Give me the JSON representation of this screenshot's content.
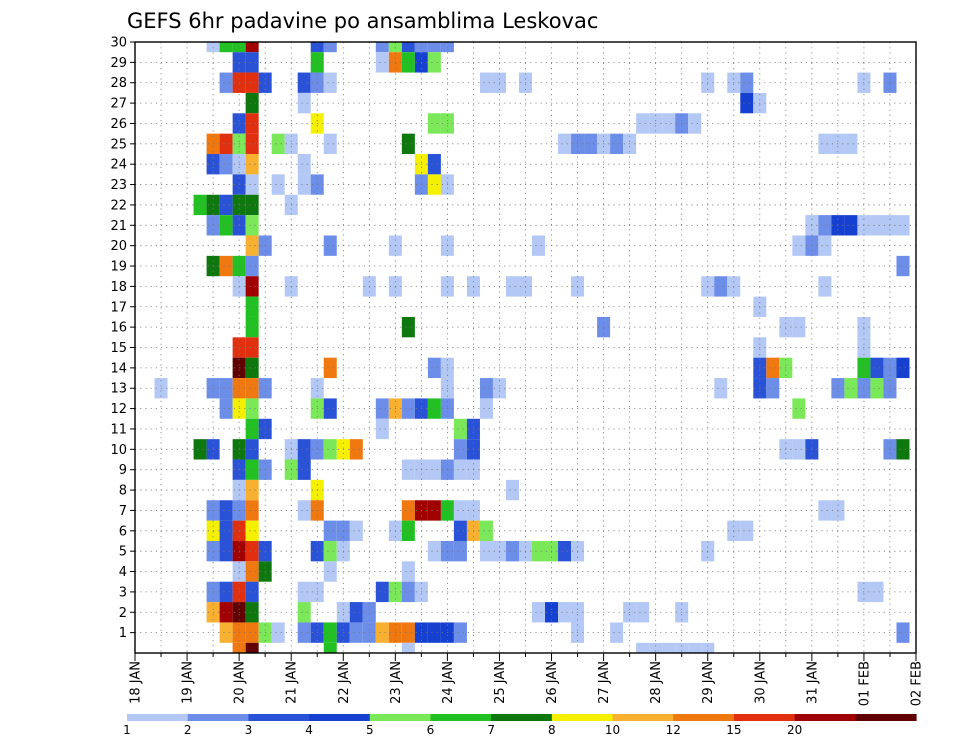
{
  "chart_data": {
    "type": "heatmap",
    "title": "GEFS 6hr padavine po ansamblima Leskovac",
    "xlabel": "",
    "ylabel": "",
    "x_tick_labels": [
      "18 JAN",
      "19 JAN",
      "20 JAN",
      "21 JAN",
      "22 JAN",
      "23 JAN",
      "24 JAN",
      "25 JAN",
      "26 JAN",
      "27 JAN",
      "28 JAN",
      "29 JAN",
      "30 JAN",
      "31 JAN",
      "01 FEB",
      "02 FEB"
    ],
    "y_tick_labels": [
      "1",
      "2",
      "3",
      "4",
      "5",
      "6",
      "7",
      "8",
      "9",
      "10",
      "11",
      "12",
      "13",
      "14",
      "15",
      "16",
      "17",
      "18",
      "19",
      "20",
      "21",
      "22",
      "23",
      "24",
      "25",
      "26",
      "27",
      "28",
      "29",
      "30"
    ],
    "x_range_6h_steps": [
      0,
      60
    ],
    "y_range_member": [
      0,
      30
    ],
    "grid": true,
    "legend": {
      "position": "bottom",
      "thresholds": [
        "1",
        "2",
        "3",
        "4",
        "5",
        "6",
        "7",
        "8",
        "10",
        "12",
        "15",
        "20"
      ],
      "colors": [
        "#b4c8f5",
        "#6c8ee8",
        "#2a52d6",
        "#1640d0",
        "#7be85a",
        "#22c022",
        "#0e780e",
        "#f5f000",
        "#f7b030",
        "#f07810",
        "#e03010",
        "#a00000",
        "#600000"
      ]
    },
    "class_colors": [
      "#b4c8f5",
      "#6c8ee8",
      "#2a52d6",
      "#1640d0",
      "#7be85a",
      "#22c022",
      "#0e780e",
      "#f5f000",
      "#f7b030",
      "#f07810",
      "#e03010",
      "#a00000",
      "#600000"
    ],
    "cells_format": "[member, 6h_step, class] where class indexes class_colors",
    "cells": [
      [
        30,
        6,
        0
      ],
      [
        30,
        7,
        5
      ],
      [
        30,
        8,
        5
      ],
      [
        30,
        9,
        11
      ],
      [
        30,
        14,
        2
      ],
      [
        30,
        15,
        1
      ],
      [
        30,
        19,
        1
      ],
      [
        30,
        20,
        4
      ],
      [
        30,
        21,
        2
      ],
      [
        30,
        22,
        1
      ],
      [
        30,
        23,
        1
      ],
      [
        30,
        24,
        1
      ],
      [
        29,
        8,
        2
      ],
      [
        29,
        9,
        2
      ],
      [
        29,
        14,
        5
      ],
      [
        29,
        19,
        0
      ],
      [
        29,
        20,
        9
      ],
      [
        29,
        21,
        5
      ],
      [
        29,
        22,
        3
      ],
      [
        29,
        23,
        4
      ],
      [
        28,
        7,
        1
      ],
      [
        28,
        8,
        10
      ],
      [
        28,
        9,
        10
      ],
      [
        28,
        10,
        2
      ],
      [
        28,
        13,
        2
      ],
      [
        28,
        14,
        1
      ],
      [
        28,
        15,
        0
      ],
      [
        28,
        27,
        0
      ],
      [
        28,
        28,
        0
      ],
      [
        28,
        30,
        0
      ],
      [
        28,
        44,
        0
      ],
      [
        28,
        46,
        0
      ],
      [
        28,
        47,
        1
      ],
      [
        28,
        56,
        0
      ],
      [
        28,
        58,
        1
      ],
      [
        27,
        9,
        6
      ],
      [
        27,
        13,
        0
      ],
      [
        27,
        47,
        3
      ],
      [
        27,
        48,
        0
      ],
      [
        26,
        8,
        2
      ],
      [
        26,
        9,
        10
      ],
      [
        26,
        14,
        7
      ],
      [
        26,
        23,
        4
      ],
      [
        26,
        24,
        4
      ],
      [
        26,
        39,
        0
      ],
      [
        26,
        40,
        0
      ],
      [
        26,
        41,
        0
      ],
      [
        26,
        42,
        1
      ],
      [
        26,
        43,
        0
      ],
      [
        25,
        6,
        9
      ],
      [
        25,
        7,
        10
      ],
      [
        25,
        8,
        4
      ],
      [
        25,
        9,
        10
      ],
      [
        25,
        11,
        4
      ],
      [
        25,
        12,
        0
      ],
      [
        25,
        15,
        0
      ],
      [
        25,
        21,
        6
      ],
      [
        25,
        33,
        0
      ],
      [
        25,
        34,
        1
      ],
      [
        25,
        35,
        1
      ],
      [
        25,
        36,
        0
      ],
      [
        25,
        37,
        1
      ],
      [
        25,
        38,
        0
      ],
      [
        25,
        53,
        0
      ],
      [
        25,
        54,
        0
      ],
      [
        25,
        55,
        0
      ],
      [
        24,
        6,
        2
      ],
      [
        24,
        7,
        1
      ],
      [
        24,
        8,
        0
      ],
      [
        24,
        9,
        8
      ],
      [
        24,
        13,
        0
      ],
      [
        24,
        22,
        7
      ],
      [
        24,
        23,
        2
      ],
      [
        23,
        8,
        2
      ],
      [
        23,
        9,
        0
      ],
      [
        23,
        11,
        0
      ],
      [
        23,
        13,
        0
      ],
      [
        23,
        14,
        1
      ],
      [
        23,
        22,
        1
      ],
      [
        23,
        23,
        7
      ],
      [
        23,
        24,
        0
      ],
      [
        22,
        5,
        5
      ],
      [
        22,
        6,
        6
      ],
      [
        22,
        7,
        2
      ],
      [
        22,
        8,
        6
      ],
      [
        22,
        9,
        6
      ],
      [
        22,
        12,
        0
      ],
      [
        21,
        6,
        1
      ],
      [
        21,
        7,
        5
      ],
      [
        21,
        8,
        2
      ],
      [
        21,
        9,
        4
      ],
      [
        21,
        52,
        0
      ],
      [
        21,
        53,
        1
      ],
      [
        21,
        54,
        3
      ],
      [
        21,
        55,
        3
      ],
      [
        21,
        56,
        0
      ],
      [
        21,
        57,
        0
      ],
      [
        21,
        58,
        0
      ],
      [
        21,
        59,
        0
      ],
      [
        20,
        9,
        8
      ],
      [
        20,
        10,
        1
      ],
      [
        20,
        15,
        1
      ],
      [
        20,
        20,
        0
      ],
      [
        20,
        24,
        0
      ],
      [
        20,
        31,
        0
      ],
      [
        20,
        51,
        0
      ],
      [
        20,
        52,
        1
      ],
      [
        20,
        53,
        0
      ],
      [
        19,
        6,
        6
      ],
      [
        19,
        7,
        9
      ],
      [
        19,
        8,
        5
      ],
      [
        19,
        9,
        1
      ],
      [
        19,
        59,
        1
      ],
      [
        18,
        8,
        0
      ],
      [
        18,
        9,
        11
      ],
      [
        18,
        12,
        0
      ],
      [
        18,
        18,
        0
      ],
      [
        18,
        20,
        0
      ],
      [
        18,
        24,
        0
      ],
      [
        18,
        26,
        0
      ],
      [
        18,
        29,
        0
      ],
      [
        18,
        30,
        0
      ],
      [
        18,
        34,
        0
      ],
      [
        18,
        44,
        0
      ],
      [
        18,
        45,
        1
      ],
      [
        18,
        46,
        0
      ],
      [
        18,
        53,
        0
      ],
      [
        17,
        9,
        5
      ],
      [
        17,
        48,
        0
      ],
      [
        16,
        9,
        5
      ],
      [
        16,
        21,
        6
      ],
      [
        16,
        36,
        1
      ],
      [
        16,
        50,
        0
      ],
      [
        16,
        51,
        0
      ],
      [
        16,
        56,
        0
      ],
      [
        15,
        8,
        10
      ],
      [
        15,
        9,
        10
      ],
      [
        15,
        48,
        0
      ],
      [
        15,
        56,
        0
      ],
      [
        14,
        8,
        12
      ],
      [
        14,
        9,
        6
      ],
      [
        14,
        15,
        9
      ],
      [
        14,
        23,
        1
      ],
      [
        14,
        24,
        0
      ],
      [
        14,
        48,
        2
      ],
      [
        14,
        49,
        9
      ],
      [
        14,
        50,
        4
      ],
      [
        14,
        56,
        5
      ],
      [
        14,
        57,
        2
      ],
      [
        14,
        58,
        1
      ],
      [
        14,
        59,
        3
      ],
      [
        13,
        2,
        0
      ],
      [
        13,
        6,
        1
      ],
      [
        13,
        7,
        1
      ],
      [
        13,
        8,
        9
      ],
      [
        13,
        9,
        9
      ],
      [
        13,
        10,
        1
      ],
      [
        13,
        14,
        0
      ],
      [
        13,
        24,
        0
      ],
      [
        13,
        27,
        1
      ],
      [
        13,
        28,
        0
      ],
      [
        13,
        45,
        0
      ],
      [
        13,
        48,
        2
      ],
      [
        13,
        49,
        1
      ],
      [
        13,
        54,
        1
      ],
      [
        13,
        55,
        4
      ],
      [
        13,
        56,
        1
      ],
      [
        13,
        57,
        4
      ],
      [
        13,
        58,
        1
      ],
      [
        12,
        7,
        1
      ],
      [
        12,
        8,
        7
      ],
      [
        12,
        9,
        4
      ],
      [
        12,
        14,
        4
      ],
      [
        12,
        15,
        2
      ],
      [
        12,
        19,
        1
      ],
      [
        12,
        20,
        8
      ],
      [
        12,
        21,
        1
      ],
      [
        12,
        22,
        2
      ],
      [
        12,
        23,
        5
      ],
      [
        12,
        24,
        1
      ],
      [
        12,
        27,
        0
      ],
      [
        12,
        51,
        4
      ],
      [
        11,
        9,
        5
      ],
      [
        11,
        10,
        2
      ],
      [
        11,
        19,
        0
      ],
      [
        11,
        25,
        4
      ],
      [
        11,
        26,
        2
      ],
      [
        10,
        5,
        6
      ],
      [
        10,
        6,
        2
      ],
      [
        10,
        8,
        6
      ],
      [
        10,
        9,
        2
      ],
      [
        10,
        12,
        0
      ],
      [
        10,
        13,
        2
      ],
      [
        10,
        14,
        1
      ],
      [
        10,
        15,
        4
      ],
      [
        10,
        16,
        7
      ],
      [
        10,
        17,
        9
      ],
      [
        10,
        25,
        1
      ],
      [
        10,
        26,
        2
      ],
      [
        10,
        50,
        0
      ],
      [
        10,
        51,
        0
      ],
      [
        10,
        52,
        2
      ],
      [
        10,
        58,
        1
      ],
      [
        10,
        59,
        6
      ],
      [
        9,
        8,
        2
      ],
      [
        9,
        9,
        5
      ],
      [
        9,
        10,
        1
      ],
      [
        9,
        12,
        4
      ],
      [
        9,
        13,
        2
      ],
      [
        9,
        21,
        0
      ],
      [
        9,
        22,
        0
      ],
      [
        9,
        23,
        0
      ],
      [
        9,
        24,
        1
      ],
      [
        9,
        25,
        0
      ],
      [
        9,
        26,
        0
      ],
      [
        8,
        8,
        0
      ],
      [
        8,
        9,
        8
      ],
      [
        8,
        14,
        7
      ],
      [
        8,
        29,
        0
      ],
      [
        7,
        6,
        1
      ],
      [
        7,
        7,
        2
      ],
      [
        7,
        8,
        1
      ],
      [
        7,
        9,
        9
      ],
      [
        7,
        13,
        0
      ],
      [
        7,
        14,
        9
      ],
      [
        7,
        21,
        9
      ],
      [
        7,
        22,
        11
      ],
      [
        7,
        23,
        11
      ],
      [
        7,
        24,
        5
      ],
      [
        7,
        25,
        0
      ],
      [
        7,
        26,
        0
      ],
      [
        7,
        53,
        0
      ],
      [
        7,
        54,
        0
      ],
      [
        6,
        6,
        7
      ],
      [
        6,
        7,
        2
      ],
      [
        6,
        8,
        10
      ],
      [
        6,
        9,
        7
      ],
      [
        6,
        15,
        1
      ],
      [
        6,
        16,
        1
      ],
      [
        6,
        17,
        0
      ],
      [
        6,
        20,
        0
      ],
      [
        6,
        21,
        5
      ],
      [
        6,
        25,
        2
      ],
      [
        6,
        26,
        8
      ],
      [
        6,
        27,
        4
      ],
      [
        6,
        46,
        0
      ],
      [
        6,
        47,
        0
      ],
      [
        5,
        6,
        1
      ],
      [
        5,
        7,
        2
      ],
      [
        5,
        8,
        11
      ],
      [
        5,
        9,
        10
      ],
      [
        5,
        10,
        2
      ],
      [
        5,
        14,
        2
      ],
      [
        5,
        15,
        4
      ],
      [
        5,
        16,
        0
      ],
      [
        5,
        23,
        0
      ],
      [
        5,
        24,
        1
      ],
      [
        5,
        25,
        1
      ],
      [
        5,
        27,
        0
      ],
      [
        5,
        28,
        0
      ],
      [
        5,
        29,
        1
      ],
      [
        5,
        30,
        0
      ],
      [
        5,
        31,
        4
      ],
      [
        5,
        32,
        4
      ],
      [
        5,
        33,
        2
      ],
      [
        5,
        34,
        0
      ],
      [
        5,
        44,
        0
      ],
      [
        4,
        8,
        0
      ],
      [
        4,
        9,
        9
      ],
      [
        4,
        10,
        6
      ],
      [
        4,
        15,
        0
      ],
      [
        4,
        21,
        0
      ],
      [
        3,
        6,
        1
      ],
      [
        3,
        7,
        2
      ],
      [
        3,
        8,
        10
      ],
      [
        3,
        9,
        2
      ],
      [
        3,
        13,
        0
      ],
      [
        3,
        14,
        0
      ],
      [
        3,
        19,
        2
      ],
      [
        3,
        20,
        4
      ],
      [
        3,
        21,
        1
      ],
      [
        3,
        22,
        0
      ],
      [
        3,
        56,
        0
      ],
      [
        3,
        57,
        0
      ],
      [
        2,
        6,
        8
      ],
      [
        2,
        7,
        11
      ],
      [
        2,
        8,
        12
      ],
      [
        2,
        9,
        6
      ],
      [
        2,
        13,
        4
      ],
      [
        2,
        16,
        0
      ],
      [
        2,
        17,
        2
      ],
      [
        2,
        18,
        1
      ],
      [
        2,
        31,
        0
      ],
      [
        2,
        32,
        3
      ],
      [
        2,
        33,
        0
      ],
      [
        2,
        34,
        0
      ],
      [
        2,
        38,
        0
      ],
      [
        2,
        39,
        0
      ],
      [
        2,
        42,
        0
      ],
      [
        1,
        7,
        8
      ],
      [
        1,
        8,
        9
      ],
      [
        1,
        9,
        9
      ],
      [
        1,
        10,
        4
      ],
      [
        1,
        11,
        0
      ],
      [
        1,
        13,
        1
      ],
      [
        1,
        14,
        2
      ],
      [
        1,
        15,
        5
      ],
      [
        1,
        16,
        2
      ],
      [
        1,
        17,
        1
      ],
      [
        1,
        18,
        1
      ],
      [
        1,
        19,
        8
      ],
      [
        1,
        20,
        9
      ],
      [
        1,
        21,
        9
      ],
      [
        1,
        22,
        3
      ],
      [
        1,
        23,
        3
      ],
      [
        1,
        24,
        3
      ],
      [
        1,
        25,
        1
      ],
      [
        1,
        34,
        0
      ],
      [
        1,
        37,
        0
      ],
      [
        1,
        59,
        1
      ],
      [
        0,
        8,
        9
      ],
      [
        0,
        9,
        12
      ],
      [
        0,
        15,
        5
      ],
      [
        0,
        21,
        0
      ],
      [
        0,
        39,
        0
      ],
      [
        0,
        40,
        0
      ],
      [
        0,
        41,
        0
      ],
      [
        0,
        42,
        0
      ],
      [
        0,
        43,
        0
      ],
      [
        0,
        44,
        0
      ]
    ]
  }
}
